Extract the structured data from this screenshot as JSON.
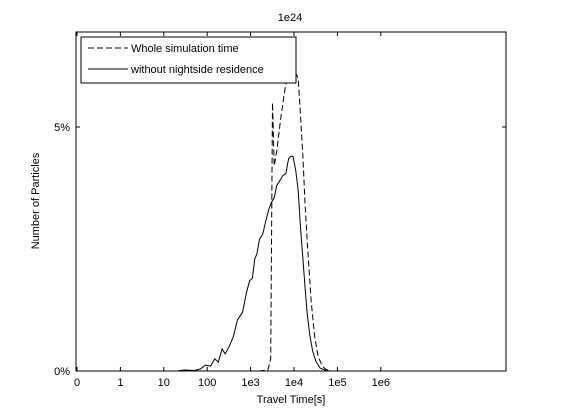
{
  "chart_data": {
    "type": "line",
    "title": "1e24",
    "xlabel": "Travel Time[s]",
    "ylabel": "Number of Particles",
    "x_scale": "log",
    "xlim": [
      0.1,
      100000000
    ],
    "ylim": [
      0,
      6.8
    ],
    "xticks": [
      {
        "value": 0.1,
        "label": "0"
      },
      {
        "value": 1,
        "label": "1"
      },
      {
        "value": 10,
        "label": "10"
      },
      {
        "value": 100,
        "label": "100"
      },
      {
        "value": 1000,
        "label": "1e3"
      },
      {
        "value": 10000,
        "label": "1e4"
      },
      {
        "value": 100000,
        "label": "1e5"
      },
      {
        "value": 1000000,
        "label": "1e6"
      }
    ],
    "yticks": [
      {
        "value": 0,
        "label": "0%"
      },
      {
        "value": 5,
        "label": "5%"
      }
    ],
    "legend": {
      "position": "top-left"
    },
    "grid": false,
    "series": [
      {
        "name": "Whole simulation time",
        "style": "dashed",
        "color": "#000000",
        "points": [
          [
            5,
            0
          ],
          [
            50,
            0
          ],
          [
            500,
            0
          ],
          [
            1500,
            0
          ],
          [
            2500,
            0.02
          ],
          [
            2900,
            0.25
          ],
          [
            3200,
            5.5
          ],
          [
            3500,
            4.2
          ],
          [
            4000,
            4.5
          ],
          [
            5000,
            5.2
          ],
          [
            6000,
            5.7
          ],
          [
            7000,
            6.05
          ],
          [
            8000,
            6.0
          ],
          [
            9500,
            6.2
          ],
          [
            11000,
            6.1
          ],
          [
            12500,
            6.0
          ],
          [
            14000,
            5.3
          ],
          [
            16000,
            4.4
          ],
          [
            18000,
            3.4
          ],
          [
            21000,
            2.4
          ],
          [
            25000,
            1.4
          ],
          [
            30000,
            0.7
          ],
          [
            36000,
            0.3
          ],
          [
            45000,
            0.1
          ],
          [
            55000,
            0.03
          ],
          [
            70000,
            0
          ]
        ]
      },
      {
        "name": "without nightside residence",
        "style": "solid",
        "color": "#000000",
        "points": [
          [
            5,
            0
          ],
          [
            20,
            0
          ],
          [
            30,
            0.02
          ],
          [
            50,
            0.01
          ],
          [
            70,
            0.04
          ],
          [
            90,
            0.12
          ],
          [
            120,
            0.1
          ],
          [
            150,
            0.25
          ],
          [
            180,
            0.18
          ],
          [
            220,
            0.45
          ],
          [
            260,
            0.35
          ],
          [
            320,
            0.5
          ],
          [
            400,
            0.7
          ],
          [
            500,
            1.05
          ],
          [
            650,
            1.2
          ],
          [
            800,
            1.6
          ],
          [
            950,
            1.85
          ],
          [
            1100,
            1.9
          ],
          [
            1250,
            2.3
          ],
          [
            1400,
            2.4
          ],
          [
            1600,
            2.7
          ],
          [
            1900,
            2.8
          ],
          [
            2200,
            3.05
          ],
          [
            2600,
            3.3
          ],
          [
            3000,
            3.45
          ],
          [
            3500,
            3.55
          ],
          [
            4000,
            3.8
          ],
          [
            4700,
            3.9
          ],
          [
            5500,
            4.0
          ],
          [
            6500,
            4.05
          ],
          [
            7500,
            4.35
          ],
          [
            8500,
            4.4
          ],
          [
            9500,
            4.4
          ],
          [
            11000,
            4.1
          ],
          [
            12500,
            3.7
          ],
          [
            14000,
            3.0
          ],
          [
            16000,
            2.3
          ],
          [
            18000,
            1.7
          ],
          [
            20000,
            1.2
          ],
          [
            23000,
            0.75
          ],
          [
            27000,
            0.4
          ],
          [
            32000,
            0.2
          ],
          [
            40000,
            0.06
          ],
          [
            55000,
            0.01
          ],
          [
            70000,
            0
          ]
        ]
      }
    ]
  }
}
